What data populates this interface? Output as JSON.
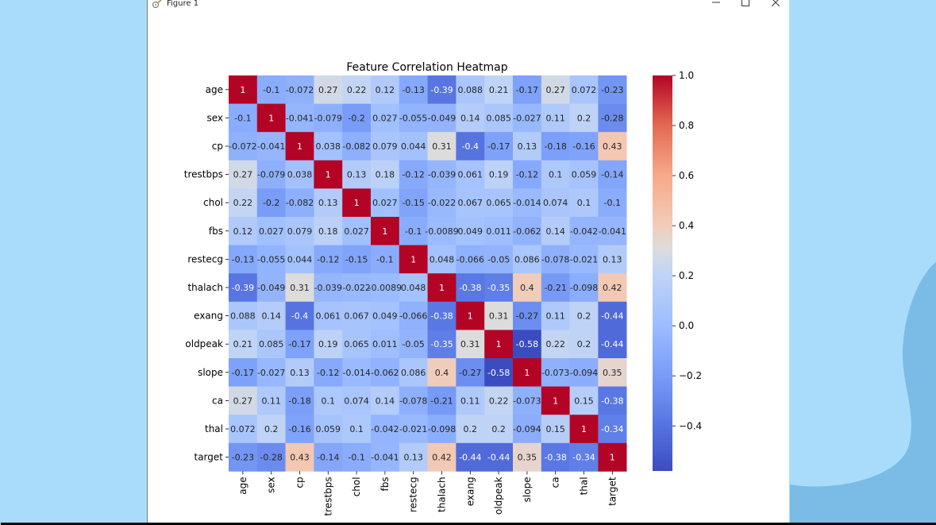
{
  "window": {
    "title": "Figure 1",
    "buttons": {
      "minimize": "minimize-icon",
      "maximize": "maximize-icon",
      "close": "close-icon"
    }
  },
  "colors": {
    "desktop": "#a9dcfb",
    "blob": "#7bbce6",
    "low": "#3b4cc0",
    "mid": "#dddddd",
    "high": "#b40426"
  },
  "chart_data": {
    "type": "heatmap",
    "title": "Feature Correlation Heatmap",
    "colormap": "coolwarm",
    "labels": [
      "age",
      "sex",
      "cp",
      "trestbps",
      "chol",
      "fbs",
      "restecg",
      "thalach",
      "exang",
      "oldpeak",
      "slope",
      "ca",
      "thal",
      "target"
    ],
    "annotations": [
      [
        "1",
        "-0.1",
        "-0.072",
        "0.27",
        "0.22",
        "0.12",
        "-0.13",
        "-0.39",
        "0.088",
        "0.21",
        "-0.17",
        "0.27",
        "0.072",
        "-0.23"
      ],
      [
        "-0.1",
        "1",
        "-0.041",
        "-0.079",
        "-0.2",
        "0.027",
        "-0.055",
        "-0.049",
        "0.14",
        "0.085",
        "-0.027",
        "0.11",
        "0.2",
        "-0.28"
      ],
      [
        "-0.072",
        "-0.041",
        "1",
        "0.038",
        "-0.082",
        "0.079",
        "0.044",
        "0.31",
        "-0.4",
        "-0.17",
        "0.13",
        "-0.18",
        "-0.16",
        "0.43"
      ],
      [
        "0.27",
        "-0.079",
        "0.038",
        "1",
        "0.13",
        "0.18",
        "-0.12",
        "-0.039",
        "0.061",
        "0.19",
        "-0.12",
        "0.1",
        "0.059",
        "-0.14"
      ],
      [
        "0.22",
        "-0.2",
        "-0.082",
        "0.13",
        "1",
        "0.027",
        "-0.15",
        "-0.022",
        "0.067",
        "0.065",
        "-0.014",
        "0.074",
        "0.1",
        "-0.1"
      ],
      [
        "0.12",
        "0.027",
        "0.079",
        "0.18",
        "0.027",
        "1",
        "-0.1",
        "-0.0089",
        "0.049",
        "0.011",
        "-0.062",
        "0.14",
        "-0.042",
        "-0.041"
      ],
      [
        "-0.13",
        "-0.055",
        "0.044",
        "-0.12",
        "-0.15",
        "-0.1",
        "1",
        "0.048",
        "-0.066",
        "-0.05",
        "0.086",
        "-0.078",
        "-0.021",
        "0.13"
      ],
      [
        "-0.39",
        "-0.049",
        "0.31",
        "-0.039",
        "-0.022",
        "-0.0089",
        "0.048",
        "1",
        "-0.38",
        "-0.35",
        "0.4",
        "-0.21",
        "-0.098",
        "0.42"
      ],
      [
        "0.088",
        "0.14",
        "-0.4",
        "0.061",
        "0.067",
        "0.049",
        "-0.066",
        "-0.38",
        "1",
        "0.31",
        "-0.27",
        "0.11",
        "0.2",
        "-0.44"
      ],
      [
        "0.21",
        "0.085",
        "-0.17",
        "0.19",
        "0.065",
        "0.011",
        "-0.05",
        "-0.35",
        "0.31",
        "1",
        "-0.58",
        "0.22",
        "0.2",
        "-0.44"
      ],
      [
        "-0.17",
        "-0.027",
        "0.13",
        "-0.12",
        "-0.014",
        "-0.062",
        "0.086",
        "0.4",
        "-0.27",
        "-0.58",
        "1",
        "-0.073",
        "-0.094",
        "0.35"
      ],
      [
        "0.27",
        "0.11",
        "-0.18",
        "0.1",
        "0.074",
        "0.14",
        "-0.078",
        "-0.21",
        "0.11",
        "0.22",
        "-0.073",
        "1",
        "0.15",
        "-0.38"
      ],
      [
        "0.072",
        "0.2",
        "-0.16",
        "0.059",
        "0.1",
        "-0.042",
        "-0.021",
        "-0.098",
        "0.2",
        "0.2",
        "-0.094",
        "0.15",
        "1",
        "-0.34"
      ],
      [
        "-0.23",
        "-0.28",
        "0.43",
        "-0.14",
        "-0.1",
        "-0.041",
        "0.13",
        "0.42",
        "-0.44",
        "-0.44",
        "0.35",
        "-0.38",
        "-0.34",
        "1"
      ]
    ],
    "colorbar": {
      "range": [
        -0.58,
        1.0
      ],
      "ticks": [
        1.0,
        0.8,
        0.6,
        0.4,
        0.2,
        0.0,
        -0.2,
        -0.4
      ],
      "tick_labels": [
        "1.0",
        "0.8",
        "0.6",
        "0.4",
        "0.2",
        "0.0",
        "−0.2",
        "−0.4"
      ]
    }
  }
}
